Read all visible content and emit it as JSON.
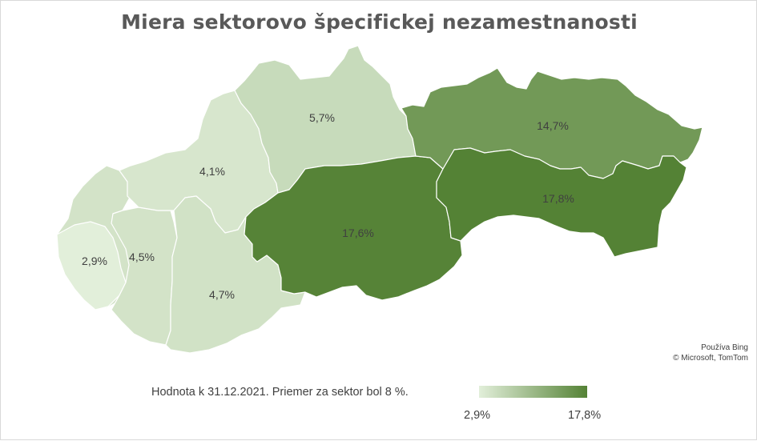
{
  "title": "Miera sektorovo špecifickej nezamestnanosti",
  "regions": [
    {
      "id": "bratislava",
      "label": "2,9%",
      "value": 2.9
    },
    {
      "id": "trnava",
      "label": "4,5%",
      "value": 4.5
    },
    {
      "id": "trencin",
      "label": "4,1%",
      "value": 4.1
    },
    {
      "id": "nitra",
      "label": "4,7%",
      "value": 4.7
    },
    {
      "id": "zilina",
      "label": "5,7%",
      "value": 5.7
    },
    {
      "id": "banska-bystrica",
      "label": "17,6%",
      "value": 17.6
    },
    {
      "id": "presov",
      "label": "14,7%",
      "value": 14.7
    },
    {
      "id": "kosice",
      "label": "17,8%",
      "value": 17.8
    }
  ],
  "legend": {
    "note": "Hodnota k 31.12.2021. Priemer za sektor bol 8 %.",
    "min_label": "2,9%",
    "max_label": "17,8%",
    "min_value": 2.9,
    "max_value": 17.8,
    "color_min": "#e2efda",
    "color_max": "#548235"
  },
  "attribution": {
    "line1": "Používa Bing",
    "line2": "© Microsoft, TomTom"
  }
}
